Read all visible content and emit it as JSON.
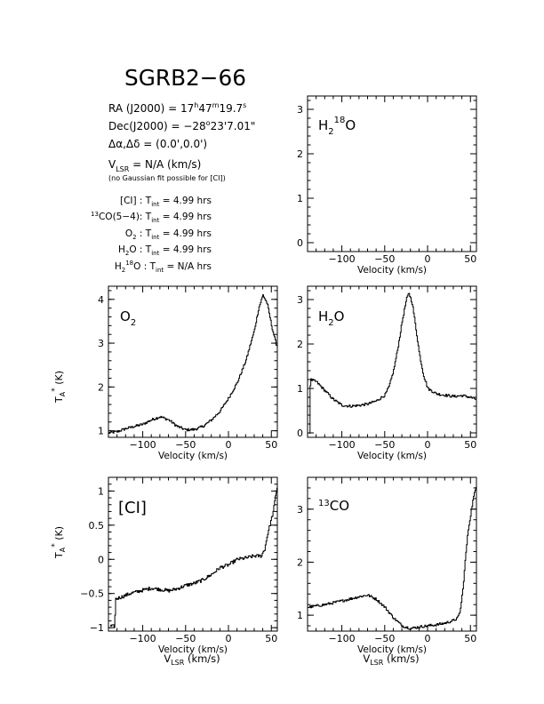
{
  "title": "SGRB2−66",
  "header": {
    "ra_prefix": "RA (J2000) = 17",
    "ra_h": "h",
    "ra_mid": "47",
    "ra_m": "m",
    "ra_sec": "19.7",
    "ra_s": "s",
    "dec_prefix": "Dec(J2000) = −28",
    "dec_deg": "o",
    "dec_rest": "23'7.01\"",
    "offset": "Δα,Δδ = (0.0',0.0')",
    "vlsr_v": "V",
    "vlsr_sub": "LSR",
    "vlsr_rest": " = N/A  (km/s)",
    "note": "(no Gaussian fit possible for [CI])"
  },
  "integrations": [
    {
      "lhs": "[CI] : T",
      "sub": "int",
      "rhs": " = 4.99 hrs"
    },
    {
      "lhs": "CO(5−4): T",
      "pre_sup": "13",
      "sub": "int",
      "rhs": " = 4.99 hrs"
    },
    {
      "lhs": "O",
      "lhs_sub": "2",
      "lhs2": " : T",
      "sub": "int",
      "rhs": " = 4.99 hrs"
    },
    {
      "lhs": "H",
      "lhs_sub": "2",
      "lhs2": "O : T",
      "sub": "int",
      "rhs": " = 4.99 hrs"
    },
    {
      "lhs": "H",
      "lhs_sub": "2",
      "lhs_sup": "18",
      "lhs2": "O : T",
      "sub": "int",
      "rhs": " = N/A  hrs"
    }
  ],
  "axis_text": {
    "xlabel": "Velocity (km/s)",
    "vlsr_label_v": "V",
    "vlsr_label_sub": "LSR",
    "vlsr_label_rest": " (km/s)",
    "ylabel_t": "T",
    "ylabel_sub": "A",
    "ylabel_sup": "*",
    "ylabel_rest": " (K)"
  },
  "chart_data": [
    {
      "id": "h218o",
      "type": "line",
      "label_parts": [
        "H",
        "2",
        "18",
        "O"
      ],
      "xlim": [
        -140,
        57
      ],
      "ylim": [
        -0.2,
        3.3
      ],
      "xticks": [
        -100,
        -50,
        0,
        50
      ],
      "yticks": [
        0,
        1,
        2,
        3
      ],
      "xlabel": "Velocity (km/s)",
      "ylabel": "",
      "series": []
    },
    {
      "id": "o2",
      "type": "line",
      "label_parts": [
        "O",
        "2"
      ],
      "xlim": [
        -140,
        57
      ],
      "ylim": [
        0.85,
        4.3
      ],
      "xticks": [
        -100,
        -50,
        0,
        50
      ],
      "yticks": [
        1,
        2,
        3,
        4
      ],
      "xlabel": "Velocity (km/s)",
      "ylabel": "T_A* (K)",
      "noise": 0.03,
      "series": [
        {
          "x": [
            -140,
            -130,
            -120,
            -110,
            -100,
            -90,
            -80,
            -70,
            -60,
            -50,
            -40,
            -30,
            -20,
            -10,
            0,
            10,
            20,
            30,
            35,
            40,
            45,
            50,
            55,
            57
          ],
          "y": [
            0.95,
            0.98,
            1.05,
            1.1,
            1.15,
            1.25,
            1.32,
            1.25,
            1.1,
            1.02,
            1.03,
            1.1,
            1.25,
            1.45,
            1.75,
            2.1,
            2.6,
            3.3,
            3.8,
            4.1,
            3.9,
            3.4,
            3.0,
            2.9
          ]
        }
      ]
    },
    {
      "id": "h2o",
      "type": "line",
      "label_parts": [
        "H",
        "2",
        "O"
      ],
      "xlim": [
        -140,
        57
      ],
      "ylim": [
        -0.1,
        3.3
      ],
      "xticks": [
        -100,
        -50,
        0,
        50
      ],
      "yticks": [
        0,
        1,
        2,
        3
      ],
      "xlabel": "Velocity (km/s)",
      "ylabel": "",
      "noise": 0.03,
      "series": [
        {
          "x": [
            -138,
            -137,
            -130,
            -120,
            -110,
            -100,
            -90,
            -80,
            -70,
            -60,
            -50,
            -45,
            -40,
            -35,
            -30,
            -25,
            -22,
            -18,
            -15,
            -10,
            -5,
            0,
            10,
            20,
            30,
            40,
            50,
            57
          ],
          "y": [
            0,
            1.2,
            1.15,
            0.95,
            0.75,
            0.62,
            0.6,
            0.62,
            0.65,
            0.72,
            0.85,
            1.05,
            1.4,
            1.9,
            2.5,
            3.0,
            3.15,
            2.9,
            2.5,
            1.8,
            1.3,
            1.0,
            0.88,
            0.85,
            0.82,
            0.84,
            0.8,
            0.75
          ]
        }
      ]
    },
    {
      "id": "ci",
      "type": "line",
      "label_parts": [
        "[CI]"
      ],
      "xlim": [
        -140,
        57
      ],
      "ylim": [
        -1.05,
        1.2
      ],
      "xticks": [
        -100,
        -50,
        0,
        50
      ],
      "yticks": [
        -1,
        -0.5,
        0,
        0.5,
        1
      ],
      "xlabel": "Velocity (km/s)",
      "ylabel": "T_A* (K)",
      "noise": 0.025,
      "series": [
        {
          "x": [
            -138,
            -133,
            -132,
            -125,
            -115,
            -100,
            -90,
            -80,
            -70,
            -60,
            -50,
            -40,
            -30,
            -20,
            -10,
            0,
            10,
            20,
            30,
            38,
            42,
            45,
            48,
            52,
            55,
            57
          ],
          "y": [
            -0.98,
            -0.98,
            -0.58,
            -0.55,
            -0.5,
            -0.45,
            -0.42,
            -0.44,
            -0.46,
            -0.43,
            -0.38,
            -0.35,
            -0.3,
            -0.22,
            -0.12,
            -0.08,
            0.0,
            0.02,
            0.05,
            0.05,
            0.15,
            0.35,
            0.5,
            0.7,
            0.95,
            1.1
          ]
        }
      ]
    },
    {
      "id": "13co",
      "type": "line",
      "label_parts": [
        "13",
        "CO"
      ],
      "xlim": [
        -140,
        57
      ],
      "ylim": [
        0.7,
        3.6
      ],
      "xticks": [
        -100,
        -50,
        0,
        50
      ],
      "yticks": [
        1,
        2,
        3
      ],
      "xlabel": "Velocity (km/s)",
      "ylabel": "",
      "noise": 0.025,
      "series": [
        {
          "x": [
            -140,
            -120,
            -100,
            -80,
            -70,
            -60,
            -50,
            -40,
            -30,
            -20,
            -10,
            0,
            10,
            20,
            30,
            35,
            38,
            41,
            44,
            47,
            50,
            53,
            56,
            57
          ],
          "y": [
            1.15,
            1.2,
            1.27,
            1.35,
            1.38,
            1.3,
            1.15,
            0.95,
            0.8,
            0.75,
            0.78,
            0.8,
            0.82,
            0.85,
            0.9,
            0.95,
            1.1,
            1.5,
            2.1,
            2.6,
            2.9,
            3.2,
            3.4,
            3.5
          ]
        }
      ]
    }
  ]
}
